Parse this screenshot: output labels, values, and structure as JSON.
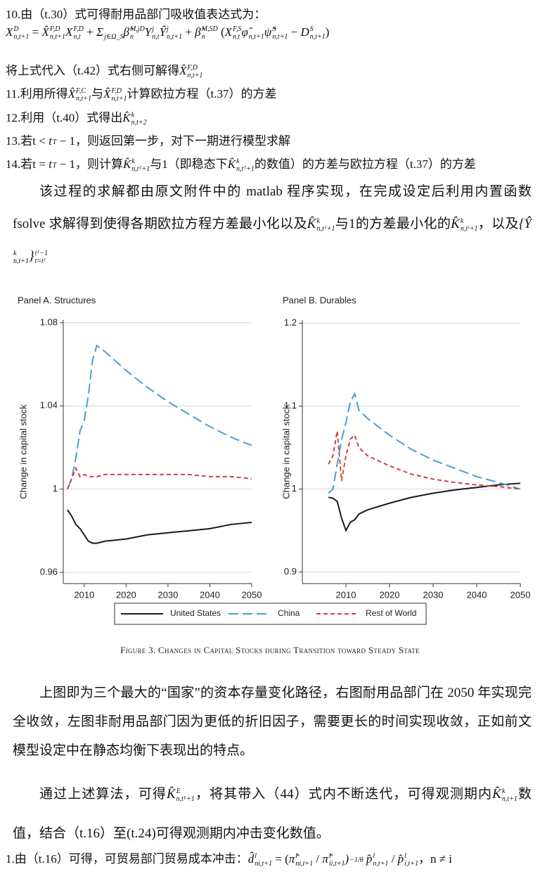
{
  "lines": [
    [
      "10.由（t.30）式可得耐用品部门吸收值表达式为："
    ],
    [
      {
        "b": "X",
        "sup": "D",
        "sub": "n,t+1"
      },
      " = ",
      {
        "b": "X̂",
        "sup": "F,D",
        "sub": "n,t+1"
      },
      {
        "b": "X",
        "sup": "F,D",
        "sub": "n,t"
      },
      " + ",
      {
        "b": "Σ",
        "sub": "j∈Ω_S"
      },
      {
        "b": "β̃",
        "sup": "M,jD",
        "sub": "n"
      },
      {
        "b": "Y",
        "sup": "j",
        "sub": "n,t"
      },
      {
        "b": "Ŷ",
        "sup": "j",
        "sub": "n,t+1"
      },
      " + ",
      {
        "b": "β̃",
        "sup": "M,SD",
        "sub": "n"
      },
      " (",
      {
        "b": "X",
        "sup": "F,S",
        "sub": "n,t"
      },
      {
        "b": "φ̂",
        "sub": "n,t+1"
      },
      {
        "b": "ψ̂",
        "sup": "S",
        "sub": "n,t+1"
      },
      " − ",
      {
        "b": "D",
        "sup": "S",
        "sub": "n,t+1"
      },
      ")"
    ],
    [
      "将上式代入（t.42）式右侧可解得",
      {
        "b": "X̂",
        "sup": "F,D",
        "sub": "n,t+1"
      }
    ],
    [
      "11.利用所得",
      {
        "b": "X̂",
        "sup": "F,C",
        "sub": "n,t+1"
      },
      "与",
      {
        "b": "X̂",
        "sup": "F,D",
        "sub": "n,t+1"
      },
      "计算欧拉方程（t.37）的方差"
    ],
    [
      "12.利用（t.40）式得出",
      {
        "b": "K̂",
        "sup": "k",
        "sub": "n,t+2"
      }
    ],
    [
      "13.若t < ",
      {
        "b": "t",
        "sup": "T"
      },
      " − 1，则返回第一步，对下一期进行模型求解"
    ],
    [
      "14.若t = ",
      {
        "b": "t",
        "sup": "T"
      },
      " − 1，则计算",
      {
        "b": "K̂",
        "sup": "k",
        "sub": "n,tᵀ+1"
      },
      "与1（即稳态下",
      {
        "b": "K̂",
        "sup": "k",
        "sub": "n,tᵀ+1"
      },
      "的数值）的方差与欧拉方程（t.37）的方差"
    ]
  ],
  "paragraphs": [
    [
      "该过程的求解都由原文附件中的 matlab 程序实现，在完成设定后利用内置函数 fsolve 求解得到使得各期欧拉方程方差最小化以及",
      {
        "b": "K̂",
        "sup": "k",
        "sub": "n,tᵀ+1"
      },
      "与1的方差最小化的",
      {
        "b": "K̂",
        "sup": "k",
        "sub": "n,tᴵ+1"
      },
      "，以及",
      {
        "b": "{Ŷ",
        "sup": "k",
        "sub": "n,t+1"
      },
      {
        "b": "}",
        "sup": "tᵀ−1",
        "sub": "t=tᴵ"
      }
    ],
    [
      "上图即为三个最大的“国家”的资本存量变化路径，右图耐用品部门在 2050 年实现完全收敛，左图非耐用品部门因为更低的折旧因子，需要更长的时间实现收敛，正如前文模型设定中在静态均衡下表现出的特点。"
    ],
    [
      "通过上述算法，可得",
      {
        "b": "K̂",
        "sup": "E",
        "sub": "n,tᴱ+1"
      },
      "，将其带入（44）式内不断迭代，可得观测期内",
      {
        "b": "K̂",
        "sup": "k",
        "sub": "n,t+1"
      },
      "数值，结合（t.16）至(t.24)可得观测期内冲击变化数值。"
    ]
  ],
  "last_line": [
    "1.由（t.16）可得，可贸易部门贸易成本冲击：",
    {
      "b": "d̂",
      "sup": "l",
      "sub": "ni,t+1"
    },
    " = (",
    {
      "b": "π̂",
      "sup": "l",
      "sub": "ni,t+1"
    },
    " / ",
    {
      "b": "π̂",
      "sup": "l",
      "sub": "ii,t+1"
    },
    {
      "b": ")",
      "sup": "−1/θ"
    },
    {
      "b": " p̂",
      "sup": "l",
      "sub": "n,t+1"
    },
    " / ",
    {
      "b": "p̂",
      "sup": "l",
      "sub": "i,t+1"
    },
    "，n ≠ i"
  ],
  "figure_caption": "Figure 3. Changes in Capital Stocks during Transition toward Steady State",
  "chart_data": [
    {
      "type": "line",
      "title": "Panel A. Structures",
      "y_label": "Change in capital stock",
      "x": [
        2006,
        2007,
        2008,
        2009,
        2010,
        2011,
        2012,
        2013,
        2015,
        2020,
        2025,
        2030,
        2035,
        2040,
        2045,
        2050
      ],
      "xlim": [
        2005,
        2050
      ],
      "xticks": [
        2010,
        2020,
        2030,
        2040,
        2050
      ],
      "ylim": [
        0.9546,
        1.0813
      ],
      "yticks": [
        0.96,
        1,
        1.04,
        1.08
      ],
      "grid": true,
      "series": [
        {
          "name": "United States",
          "color": "#1a1a1a",
          "dash": "solid",
          "values": [
            0.99,
            0.987,
            0.983,
            0.981,
            0.978,
            0.975,
            0.974,
            0.974,
            0.975,
            0.976,
            0.978,
            0.979,
            0.98,
            0.981,
            0.983,
            0.984
          ]
        },
        {
          "name": "China",
          "color": "#4a9fcf",
          "dash": "long",
          "values": [
            1.0,
            1.005,
            1.015,
            1.028,
            1.033,
            1.045,
            1.062,
            1.069,
            1.066,
            1.057,
            1.049,
            1.042,
            1.036,
            1.03,
            1.025,
            1.021
          ]
        },
        {
          "name": "Rest of World",
          "color": "#d0414b",
          "dash": "short",
          "values": [
            1.0,
            1.005,
            1.01,
            1.006,
            1.007,
            1.006,
            1.006,
            1.006,
            1.007,
            1.007,
            1.007,
            1.007,
            1.007,
            1.006,
            1.006,
            1.005
          ]
        }
      ]
    },
    {
      "type": "line",
      "title": "Panel B. Durables",
      "y_label": "Change in capital stock",
      "x": [
        2006,
        2007,
        2008,
        2009,
        2010,
        2011,
        2012,
        2013,
        2015,
        2020,
        2025,
        2030,
        2035,
        2040,
        2045,
        2050
      ],
      "xlim": [
        2000,
        2050
      ],
      "xticks": [
        2010,
        2020,
        2030,
        2040,
        2050
      ],
      "ylim": [
        0.886,
        1.204
      ],
      "yticks": [
        0.9,
        1,
        1.1,
        1.2
      ],
      "grid": true,
      "series": [
        {
          "color": "#1a1a1a",
          "dash": "solid",
          "values": [
            0.99,
            0.989,
            0.985,
            0.965,
            0.95,
            0.96,
            0.963,
            0.97,
            0.975,
            0.983,
            0.99,
            0.995,
            0.999,
            1.002,
            1.005,
            1.007
          ]
        },
        {
          "color": "#4a9fcf",
          "dash": "long",
          "values": [
            0.995,
            1.0,
            1.03,
            1.06,
            1.08,
            1.105,
            1.115,
            1.095,
            1.085,
            1.065,
            1.048,
            1.035,
            1.025,
            1.015,
            1.008,
            1.0
          ]
        },
        {
          "color": "#d0414b",
          "dash": "short",
          "values": [
            1.03,
            1.04,
            1.07,
            1.01,
            1.04,
            1.06,
            1.065,
            1.05,
            1.04,
            1.028,
            1.018,
            1.012,
            1.008,
            1.005,
            1.003,
            1.0
          ]
        }
      ]
    }
  ]
}
